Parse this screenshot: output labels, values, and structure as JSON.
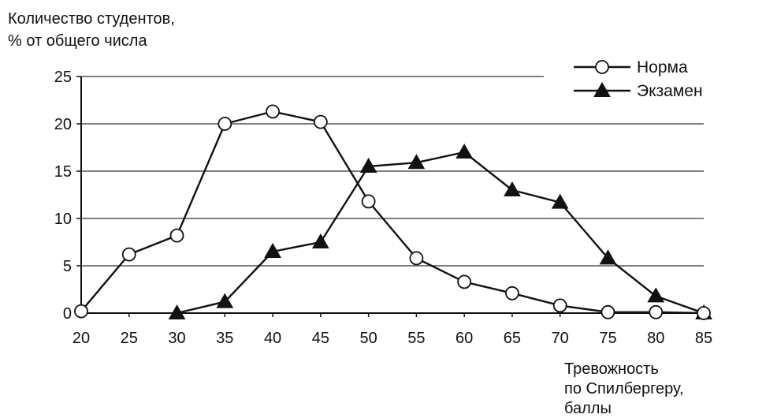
{
  "chart_data": {
    "type": "line",
    "ylabel": [
      "Количество студентов,",
      "% от общего числа"
    ],
    "xlabel": [
      "Тревожность",
      "по Спилбергеру,",
      "баллы"
    ],
    "x": [
      20,
      25,
      30,
      35,
      40,
      45,
      50,
      55,
      60,
      65,
      70,
      75,
      80,
      85
    ],
    "xticks": [
      "20",
      "25",
      "30",
      "35",
      "40",
      "45",
      "50",
      "55",
      "60",
      "65",
      "70",
      "75",
      "80",
      "85"
    ],
    "yticks": [
      "0",
      "5",
      "10",
      "15",
      "20",
      "25"
    ],
    "xlim": [
      20,
      85
    ],
    "ylim": [
      0,
      25
    ],
    "grid": "horizontal",
    "legend_position": "top-right",
    "series": [
      {
        "name": "Норма",
        "marker": "open-circle",
        "points": [
          [
            20,
            0.2
          ],
          [
            25,
            6.2
          ],
          [
            30,
            8.2
          ],
          [
            35,
            20.0
          ],
          [
            40,
            21.3
          ],
          [
            45,
            20.2
          ],
          [
            50,
            11.8
          ],
          [
            55,
            5.8
          ],
          [
            60,
            3.3
          ],
          [
            65,
            2.1
          ],
          [
            70,
            0.8
          ],
          [
            75,
            0.1
          ],
          [
            80,
            0.1
          ],
          [
            85,
            0.0
          ]
        ]
      },
      {
        "name": "Экзамен",
        "marker": "filled-triangle",
        "points": [
          [
            30,
            0.0
          ],
          [
            35,
            1.2
          ],
          [
            40,
            6.5
          ],
          [
            45,
            7.5
          ],
          [
            50,
            15.5
          ],
          [
            55,
            15.9
          ],
          [
            60,
            17.0
          ],
          [
            65,
            13.0
          ],
          [
            70,
            11.7
          ],
          [
            75,
            5.8
          ],
          [
            80,
            1.8
          ],
          [
            85,
            0.0
          ]
        ]
      }
    ]
  }
}
